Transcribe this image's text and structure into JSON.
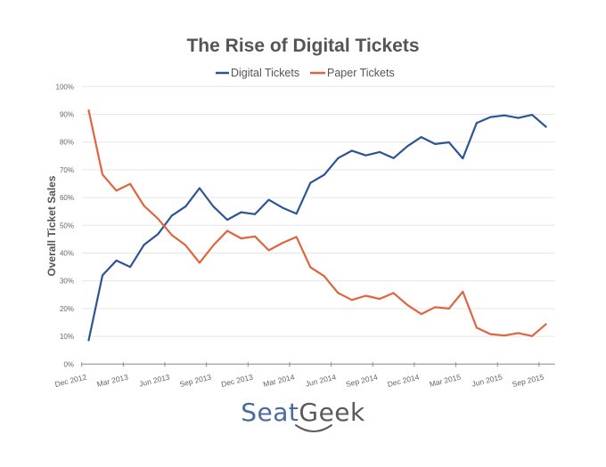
{
  "chart_data": {
    "type": "line",
    "title": "The Rise of Digital Tickets",
    "xlabel": "",
    "ylabel": "Overall Ticket Sales",
    "ylim": [
      0,
      100
    ],
    "y_ticks": [
      "0%",
      "10%",
      "20%",
      "30%",
      "40%",
      "50%",
      "60%",
      "70%",
      "80%",
      "90%",
      "100%"
    ],
    "x_ticks": [
      "Dec 2012",
      "Mar 2013",
      "Jun 2013",
      "Sep 2013",
      "Dec 2013",
      "Mar 2014",
      "Jun 2014",
      "Sep 2014",
      "Dec 2014",
      "Mar 2015",
      "Jun 2015",
      "Sep 2015"
    ],
    "x_tick_month_step": 3,
    "grid": true,
    "legend_position": "top-center",
    "series": [
      {
        "name": "Digital Tickets",
        "color": "#2d5596",
        "values": [
          8.6,
          32.0,
          37.3,
          35.0,
          43.0,
          46.8,
          53.5,
          56.8,
          63.4,
          56.8,
          52.0,
          54.7,
          54.0,
          59.2,
          56.3,
          54.2,
          65.3,
          68.2,
          74.2,
          76.9,
          75.2,
          76.4,
          74.2,
          78.5,
          81.8,
          79.3,
          79.9,
          74.1,
          86.9,
          89.0,
          89.6,
          88.7,
          89.8,
          85.5
        ]
      },
      {
        "name": "Paper Tickets",
        "color": "#e0643f",
        "values": [
          91.4,
          68.3,
          62.5,
          64.9,
          57.0,
          52.4,
          46.5,
          42.8,
          36.5,
          42.8,
          48.0,
          45.3,
          46.0,
          41.0,
          43.7,
          45.8,
          34.9,
          31.7,
          25.6,
          23.1,
          24.6,
          23.5,
          25.6,
          21.3,
          18.0,
          20.5,
          20.0,
          26.1,
          13.1,
          10.8,
          10.3,
          11.2,
          10.1,
          14.4
        ]
      }
    ]
  },
  "logo": {
    "part1": "Seat",
    "part2": "Geek"
  }
}
